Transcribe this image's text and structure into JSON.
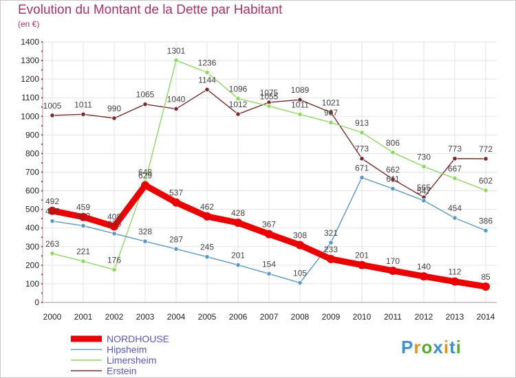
{
  "title": "Evolution du Montant de la Dette par Habitant",
  "subtitle": "(en €)",
  "logo": {
    "text": "Proxiti",
    "colors": [
      "#3a8fd6",
      "#e8921a",
      "#5aaa2a",
      "#3a8fd6",
      "#e8921a",
      "#3a8fd6",
      "#5aaa2a"
    ]
  },
  "chart_data": {
    "type": "line",
    "x": [
      "2000",
      "2001",
      "2002",
      "2003",
      "2004",
      "2005",
      "2006",
      "2007",
      "2008",
      "2009",
      "2010",
      "2011",
      "2012",
      "2013",
      "2014"
    ],
    "ylim": [
      0,
      1400
    ],
    "yticks": [
      0,
      100,
      200,
      300,
      400,
      500,
      600,
      700,
      800,
      900,
      1000,
      1100,
      1200,
      1300,
      1400
    ],
    "grid": true,
    "legend": "bottom-left",
    "series": [
      {
        "name": "Erstein",
        "color": "#7a2a2a",
        "values": [
          1005,
          1011,
          990,
          1065,
          1040,
          1144,
          1012,
          1075,
          1089,
          1021,
          773,
          662,
          565,
          773,
          772
        ]
      },
      {
        "name": "Limersheim",
        "color": "#88dd55",
        "values": [
          263,
          221,
          176,
          648,
          1301,
          1236,
          1096,
          1055,
          1011,
          967,
          913,
          806,
          730,
          667,
          602
        ]
      },
      {
        "name": "Hipsheim",
        "color": "#5599cc",
        "values": [
          437,
          412,
          370,
          328,
          287,
          245,
          201,
          154,
          105,
          321,
          671,
          611,
          547,
          454,
          386
        ]
      },
      {
        "name": "NORDHOUSE",
        "color": "#ee0000",
        "values": [
          492,
          459,
          408,
          629,
          537,
          462,
          428,
          367,
          308,
          233,
          201,
          170,
          140,
          112,
          85
        ]
      }
    ]
  }
}
